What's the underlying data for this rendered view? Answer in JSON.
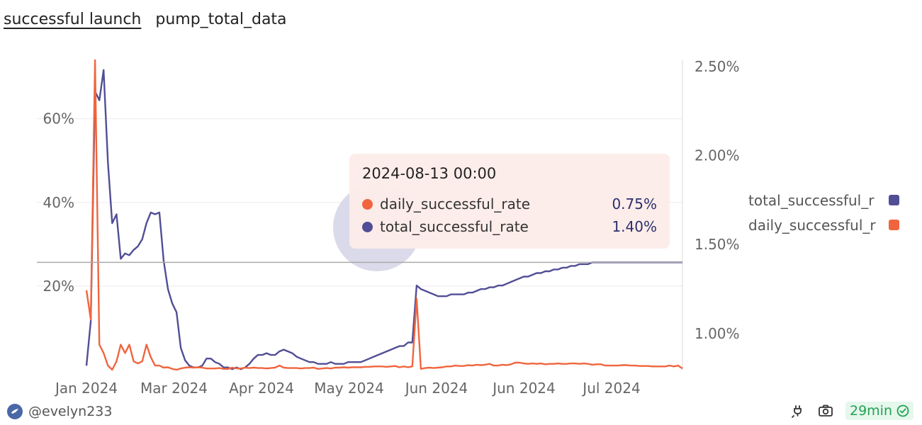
{
  "tabs": [
    {
      "label": "successful launch",
      "active": true
    },
    {
      "label": "pump_total_data",
      "active": false
    }
  ],
  "chart_data": {
    "type": "line",
    "x_ticks": [
      "Jan 2024",
      "Mar 2024",
      "Apr 2024",
      "May 2024",
      "Jun 2024",
      "Jun 2024",
      "Jul 2024"
    ],
    "y_left": {
      "ticks": [
        "20%",
        "40%",
        "60%"
      ],
      "range": [
        0,
        74
      ]
    },
    "y_right": {
      "ticks": [
        "1.00%",
        "1.50%",
        "2.00%",
        "2.50%"
      ],
      "range": [
        0.797,
        2.535
      ]
    },
    "grid": true,
    "legend_position": "right",
    "series": [
      {
        "name": "total_successful_rate",
        "axis": "right",
        "color": "#514e95",
        "values": [
          0.82,
          1.07,
          2.36,
          2.31,
          2.48,
          1.96,
          1.62,
          1.67,
          1.42,
          1.45,
          1.44,
          1.47,
          1.49,
          1.53,
          1.62,
          1.68,
          1.67,
          1.68,
          1.41,
          1.25,
          1.17,
          1.12,
          0.92,
          0.85,
          0.82,
          0.81,
          0.81,
          0.82,
          0.86,
          0.86,
          0.84,
          0.83,
          0.81,
          0.81,
          0.8,
          0.81,
          0.8,
          0.81,
          0.83,
          0.86,
          0.88,
          0.88,
          0.89,
          0.88,
          0.88,
          0.9,
          0.91,
          0.9,
          0.89,
          0.87,
          0.86,
          0.85,
          0.84,
          0.84,
          0.83,
          0.83,
          0.83,
          0.84,
          0.83,
          0.83,
          0.83,
          0.84,
          0.84,
          0.84,
          0.84,
          0.85,
          0.86,
          0.87,
          0.88,
          0.89,
          0.9,
          0.91,
          0.92,
          0.93,
          0.93,
          0.95,
          0.95,
          1.27,
          1.25,
          1.24,
          1.23,
          1.22,
          1.21,
          1.21,
          1.21,
          1.22,
          1.22,
          1.22,
          1.22,
          1.23,
          1.23,
          1.24,
          1.25,
          1.25,
          1.26,
          1.26,
          1.27,
          1.27,
          1.28,
          1.29,
          1.3,
          1.31,
          1.32,
          1.32,
          1.33,
          1.34,
          1.34,
          1.35,
          1.35,
          1.36,
          1.36,
          1.37,
          1.37,
          1.38,
          1.38,
          1.39,
          1.39,
          1.39,
          1.4,
          1.4,
          1.4,
          1.4,
          1.4,
          1.4,
          1.4,
          1.4,
          1.4,
          1.4,
          1.4,
          1.4,
          1.4,
          1.4,
          1.4,
          1.4,
          1.4,
          1.4,
          1.4,
          1.4,
          1.4,
          1.4
        ]
      },
      {
        "name": "daily_successful_rate",
        "axis": "left",
        "color": "#f0653e",
        "values": [
          19,
          12,
          74,
          6,
          4,
          1,
          0,
          2,
          6,
          4,
          6,
          2,
          1.5,
          2,
          6,
          3,
          1,
          1,
          0.5,
          0.6,
          0.2,
          0,
          0.3,
          0.5,
          0.6,
          0.5,
          0.6,
          0.5,
          0.3,
          0.3,
          0.3,
          0.4,
          0.2,
          0.2,
          0.5,
          0.3,
          0.3,
          0.5,
          0.4,
          0.5,
          0.4,
          0.4,
          0.3,
          0.4,
          0.5,
          1,
          0.5,
          0.4,
          0.4,
          0.4,
          0.3,
          0.4,
          0.4,
          0.5,
          0.2,
          0.3,
          0.4,
          0.3,
          0.5,
          0.5,
          0.6,
          0.5,
          0.6,
          0.6,
          0.6,
          0.7,
          0.7,
          0.8,
          0.8,
          0.8,
          0.7,
          0.8,
          0.9,
          0.6,
          0.8,
          0.6,
          0.8,
          17,
          0.2,
          0.4,
          0.5,
          0.4,
          0.5,
          0.6,
          0.8,
          0.8,
          1,
          0.9,
          0.9,
          1.1,
          1,
          1.2,
          1.1,
          1.2,
          1.4,
          1,
          1,
          1.2,
          1.1,
          1.3,
          1.7,
          1.7,
          1.5,
          1.4,
          1.5,
          1.4,
          1.5,
          1.3,
          1.4,
          1.4,
          1.5,
          1.4,
          1.4,
          1.5,
          1.5,
          1.4,
          1.5,
          1.4,
          1.2,
          1.3,
          1.3,
          1,
          1,
          1,
          1,
          1.1,
          1.1,
          1,
          1,
          0.9,
          0.9,
          0.9,
          0.8,
          0.8,
          0.8,
          0.8,
          1,
          0.8,
          1,
          0.3
        ]
      }
    ],
    "crosshair_series_right_value": 1.4
  },
  "tooltip": {
    "title": "2024-08-13 00:00",
    "rows": [
      {
        "name": "daily_successful_rate",
        "value": "0.75%",
        "color": "#f0653e"
      },
      {
        "name": "total_successful_rate",
        "value": "1.40%",
        "color": "#514e95"
      }
    ]
  },
  "legend": [
    {
      "label": "total_successful_r",
      "color": "#514e95"
    },
    {
      "label": "daily_successful_r",
      "color": "#f0653e"
    }
  ],
  "footer": {
    "username": "@evelyn233",
    "badge": "29min",
    "icons": [
      "plug-icon",
      "camera-icon",
      "check-circle-icon"
    ]
  }
}
